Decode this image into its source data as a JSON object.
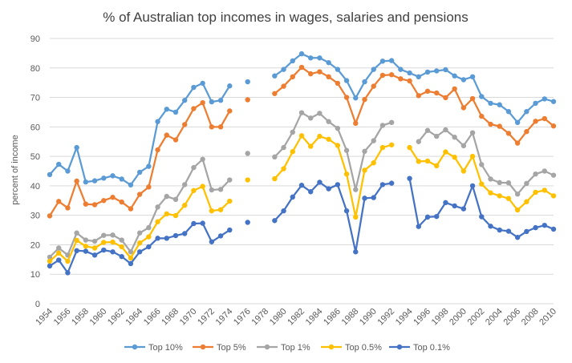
{
  "chart_data": {
    "type": "line",
    "title": "% of Australian top incomes in wages, salaries and pensions",
    "xlabel": "",
    "ylabel": "percent of income",
    "xlim": [
      1954,
      2010
    ],
    "ylim": [
      0,
      90
    ],
    "yticks": [
      "0",
      "10",
      "20",
      "30",
      "40",
      "50",
      "60",
      "70",
      "80",
      "90"
    ],
    "xticks": [
      "1954",
      "1956",
      "1958",
      "1960",
      "1962",
      "1964",
      "1966",
      "1968",
      "1970",
      "1972",
      "1974",
      "1976",
      "1978",
      "1980",
      "1982",
      "1984",
      "1986",
      "1988",
      "1990",
      "1992",
      "1994",
      "1996",
      "1998",
      "2000",
      "2002",
      "2004",
      "2006",
      "2008",
      "2010"
    ],
    "grid": true,
    "legend_position": "bottom",
    "series": [
      {
        "name": "Top 10%",
        "color": "#5B9BD5",
        "points": [
          [
            1954,
            43.8
          ],
          [
            1955,
            47.3
          ],
          [
            1956,
            45
          ],
          [
            1957,
            53
          ],
          [
            1958,
            41.3
          ],
          [
            1959,
            41.7
          ],
          [
            1960,
            42.6
          ],
          [
            1961,
            43.4
          ],
          [
            1962,
            42.3
          ],
          [
            1963,
            40.3
          ],
          [
            1964,
            44.6
          ],
          [
            1965,
            46.6
          ],
          [
            1966,
            61.8
          ],
          [
            1967,
            66
          ],
          [
            1968,
            65
          ],
          [
            1969,
            69
          ],
          [
            1970,
            73.4
          ],
          [
            1971,
            74.8
          ],
          [
            1972,
            68.5
          ],
          [
            1973,
            69
          ],
          [
            1974,
            73.9
          ],
          [
            1976,
            75.3
          ],
          [
            1979,
            77.3
          ],
          [
            1980,
            79.5
          ],
          [
            1981,
            82.4
          ],
          [
            1982,
            84.8
          ],
          [
            1983,
            83.4
          ],
          [
            1984,
            83.4
          ],
          [
            1985,
            81.8
          ],
          [
            1986,
            79.5
          ],
          [
            1987,
            75.7
          ],
          [
            1988,
            69.8
          ],
          [
            1989,
            75.3
          ],
          [
            1990,
            79.5
          ],
          [
            1991,
            82.3
          ],
          [
            1992,
            82.5
          ],
          [
            1993,
            79.5
          ],
          [
            1994,
            78.3
          ],
          [
            1995,
            77
          ],
          [
            1996,
            78.6
          ],
          [
            1997,
            79
          ],
          [
            1998,
            79.4
          ],
          [
            1999,
            77.3
          ],
          [
            2000,
            76
          ],
          [
            2001,
            77
          ],
          [
            2002,
            70.3
          ],
          [
            2003,
            68
          ],
          [
            2004,
            67.5
          ],
          [
            2005,
            65.2
          ],
          [
            2006,
            61.5
          ],
          [
            2007,
            65.2
          ],
          [
            2008,
            68
          ],
          [
            2009,
            69.5
          ],
          [
            2010,
            68.6
          ]
        ]
      },
      {
        "name": "Top 5%",
        "color": "#ED7D31",
        "points": [
          [
            1954,
            29.8
          ],
          [
            1955,
            34.7
          ],
          [
            1956,
            32.5
          ],
          [
            1957,
            41.6
          ],
          [
            1958,
            33.8
          ],
          [
            1959,
            33.6
          ],
          [
            1960,
            35
          ],
          [
            1961,
            36.1
          ],
          [
            1962,
            34.5
          ],
          [
            1963,
            32.2
          ],
          [
            1964,
            37.1
          ],
          [
            1965,
            39.6
          ],
          [
            1966,
            52.2
          ],
          [
            1967,
            57.2
          ],
          [
            1968,
            55.6
          ],
          [
            1969,
            60.8
          ],
          [
            1970,
            66.2
          ],
          [
            1971,
            68.2
          ],
          [
            1972,
            60
          ],
          [
            1973,
            60
          ],
          [
            1974,
            65.4
          ],
          [
            1976,
            69.2
          ],
          [
            1979,
            71.3
          ],
          [
            1980,
            73.8
          ],
          [
            1981,
            77
          ],
          [
            1982,
            80.2
          ],
          [
            1983,
            78
          ],
          [
            1984,
            78.7
          ],
          [
            1985,
            77
          ],
          [
            1986,
            74.8
          ],
          [
            1987,
            70
          ],
          [
            1988,
            61.2
          ],
          [
            1989,
            69.3
          ],
          [
            1990,
            73.8
          ],
          [
            1991,
            77.5
          ],
          [
            1992,
            77.7
          ],
          [
            1993,
            76.3
          ],
          [
            1994,
            75.6
          ],
          [
            1995,
            70.6
          ],
          [
            1996,
            72.1
          ],
          [
            1997,
            71.5
          ],
          [
            1998,
            69.9
          ],
          [
            1999,
            72.9
          ],
          [
            2000,
            66.5
          ],
          [
            2001,
            69.6
          ],
          [
            2002,
            63.6
          ],
          [
            2003,
            60.9
          ],
          [
            2004,
            60.2
          ],
          [
            2005,
            57.8
          ],
          [
            2006,
            54.5
          ],
          [
            2007,
            58.4
          ],
          [
            2008,
            61.9
          ],
          [
            2009,
            62.8
          ],
          [
            2010,
            60.3
          ]
        ]
      },
      {
        "name": "Top 1%",
        "color": "#A5A5A5",
        "points": [
          [
            1954,
            15.8
          ],
          [
            1955,
            18.9
          ],
          [
            1956,
            16.5
          ],
          [
            1957,
            24
          ],
          [
            1958,
            21.6
          ],
          [
            1959,
            21.2
          ],
          [
            1960,
            23.2
          ],
          [
            1961,
            23.3
          ],
          [
            1962,
            21.6
          ],
          [
            1963,
            17.6
          ],
          [
            1964,
            24
          ],
          [
            1965,
            25.8
          ],
          [
            1966,
            32.8
          ],
          [
            1967,
            36.4
          ],
          [
            1968,
            35.4
          ],
          [
            1969,
            40.4
          ],
          [
            1970,
            46.2
          ],
          [
            1971,
            49
          ],
          [
            1972,
            38.6
          ],
          [
            1973,
            38.8
          ],
          [
            1974,
            42
          ],
          [
            1976,
            51
          ],
          [
            1979,
            49.8
          ],
          [
            1980,
            53
          ],
          [
            1981,
            58.2
          ],
          [
            1982,
            64.8
          ],
          [
            1983,
            63
          ],
          [
            1984,
            64.6
          ],
          [
            1985,
            61.8
          ],
          [
            1986,
            59.5
          ],
          [
            1987,
            52
          ],
          [
            1988,
            38.7
          ],
          [
            1989,
            51.7
          ],
          [
            1990,
            55.3
          ],
          [
            1991,
            60.5
          ],
          [
            1992,
            61.5
          ],
          [
            1995,
            55
          ],
          [
            1996,
            58.8
          ],
          [
            1997,
            56.8
          ],
          [
            1998,
            59
          ],
          [
            1999,
            56.5
          ],
          [
            2000,
            53.6
          ],
          [
            2001,
            58
          ],
          [
            2002,
            47.2
          ],
          [
            2003,
            42.3
          ],
          [
            2004,
            41.1
          ],
          [
            2005,
            41
          ],
          [
            2006,
            37.2
          ],
          [
            2007,
            40.8
          ],
          [
            2008,
            44
          ],
          [
            2009,
            45
          ],
          [
            2010,
            43.6
          ]
        ]
      },
      {
        "name": "Top 0.5%",
        "color": "#FFC000",
        "points": [
          [
            1954,
            14.4
          ],
          [
            1955,
            17.2
          ],
          [
            1956,
            14.4
          ],
          [
            1957,
            21.5
          ],
          [
            1958,
            19.5
          ],
          [
            1959,
            18.9
          ],
          [
            1960,
            20.8
          ],
          [
            1961,
            20.9
          ],
          [
            1962,
            19.3
          ],
          [
            1963,
            15.5
          ],
          [
            1964,
            20.6
          ],
          [
            1965,
            22.7
          ],
          [
            1966,
            27.8
          ],
          [
            1967,
            30.5
          ],
          [
            1968,
            29.9
          ],
          [
            1969,
            33.4
          ],
          [
            1970,
            38.4
          ],
          [
            1971,
            39.8
          ],
          [
            1972,
            31.5
          ],
          [
            1973,
            31.9
          ],
          [
            1974,
            34.8
          ],
          [
            1976,
            42
          ],
          [
            1979,
            42.4
          ],
          [
            1980,
            45.8
          ],
          [
            1981,
            51.6
          ],
          [
            1982,
            57
          ],
          [
            1983,
            53.4
          ],
          [
            1984,
            56.8
          ],
          [
            1985,
            55.8
          ],
          [
            1986,
            53.7
          ],
          [
            1987,
            44
          ],
          [
            1988,
            29.4
          ],
          [
            1989,
            45.3
          ],
          [
            1990,
            47.8
          ],
          [
            1991,
            53
          ],
          [
            1992,
            53.9
          ],
          [
            1994,
            53
          ],
          [
            1995,
            48.3
          ],
          [
            1996,
            48.4
          ],
          [
            1997,
            46.8
          ],
          [
            1998,
            51.5
          ],
          [
            1999,
            49.7
          ],
          [
            2000,
            45
          ],
          [
            2001,
            50
          ],
          [
            2002,
            40.6
          ],
          [
            2003,
            37.6
          ],
          [
            2004,
            36.6
          ],
          [
            2005,
            35.7
          ],
          [
            2006,
            31.8
          ],
          [
            2007,
            34.6
          ],
          [
            2008,
            37.8
          ],
          [
            2009,
            38.5
          ],
          [
            2010,
            36.6
          ]
        ]
      },
      {
        "name": "Top 0.1%",
        "color": "#4472C4",
        "points": [
          [
            1954,
            12.8
          ],
          [
            1955,
            14.8
          ],
          [
            1956,
            10.5
          ],
          [
            1957,
            18
          ],
          [
            1958,
            17.8
          ],
          [
            1959,
            16.5
          ],
          [
            1960,
            18.2
          ],
          [
            1961,
            17.6
          ],
          [
            1962,
            16
          ],
          [
            1963,
            13.6
          ],
          [
            1964,
            17.6
          ],
          [
            1965,
            19.3
          ],
          [
            1966,
            22.2
          ],
          [
            1967,
            22.2
          ],
          [
            1968,
            23.1
          ],
          [
            1969,
            23.8
          ],
          [
            1970,
            27.2
          ],
          [
            1971,
            27.3
          ],
          [
            1972,
            21
          ],
          [
            1973,
            23
          ],
          [
            1974,
            25
          ],
          [
            1976,
            27.6
          ],
          [
            1979,
            28.2
          ],
          [
            1980,
            31.5
          ],
          [
            1981,
            36.2
          ],
          [
            1982,
            40.2
          ],
          [
            1983,
            38
          ],
          [
            1984,
            41.2
          ],
          [
            1985,
            39
          ],
          [
            1986,
            40.4
          ],
          [
            1987,
            31.5
          ],
          [
            1988,
            17.6
          ],
          [
            1989,
            35.8
          ],
          [
            1990,
            36
          ],
          [
            1991,
            40.4
          ],
          [
            1992,
            40.9
          ],
          [
            1994,
            42.5
          ],
          [
            1995,
            26.2
          ],
          [
            1996,
            29.4
          ],
          [
            1997,
            29.6
          ],
          [
            1998,
            34.3
          ],
          [
            1999,
            33.2
          ],
          [
            2000,
            32.2
          ],
          [
            2001,
            40
          ],
          [
            2002,
            29.5
          ],
          [
            2003,
            26.3
          ],
          [
            2004,
            25
          ],
          [
            2005,
            24.6
          ],
          [
            2006,
            22.5
          ],
          [
            2007,
            24.5
          ],
          [
            2008,
            25.8
          ],
          [
            2009,
            26.6
          ],
          [
            2010,
            25.3
          ]
        ]
      }
    ]
  }
}
